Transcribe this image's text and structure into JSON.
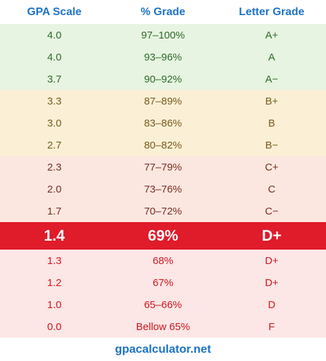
{
  "headers": {
    "gpa": "GPA Scale",
    "percent": "% Grade",
    "letter": "Letter Grade"
  },
  "rows": [
    {
      "gpa": "4.0",
      "percent": "97–100%",
      "letter": "A+",
      "group": "green"
    },
    {
      "gpa": "4.0",
      "percent": "93–96%",
      "letter": "A",
      "group": "green"
    },
    {
      "gpa": "3.7",
      "percent": "90–92%",
      "letter": "A−",
      "group": "green"
    },
    {
      "gpa": "3.3",
      "percent": "87–89%",
      "letter": "B+",
      "group": "yellow"
    },
    {
      "gpa": "3.0",
      "percent": "83–86%",
      "letter": "B",
      "group": "yellow"
    },
    {
      "gpa": "2.7",
      "percent": "80–82%",
      "letter": "B−",
      "group": "yellow"
    },
    {
      "gpa": "2.3",
      "percent": "77–79%",
      "letter": "C+",
      "group": "peach"
    },
    {
      "gpa": "2.0",
      "percent": "73–76%",
      "letter": "C",
      "group": "peach"
    },
    {
      "gpa": "1.7",
      "percent": "70–72%",
      "letter": "C−",
      "group": "peach"
    },
    {
      "gpa": "1.4",
      "percent": "69%",
      "letter": "D+",
      "group": "highlight"
    },
    {
      "gpa": "1.3",
      "percent": "68%",
      "letter": "D+",
      "group": "red"
    },
    {
      "gpa": "1.2",
      "percent": "67%",
      "letter": "D+",
      "group": "red"
    },
    {
      "gpa": "1.0",
      "percent": "65–66%",
      "letter": "D",
      "group": "red"
    },
    {
      "gpa": "0.0",
      "percent": "Bellow 65%",
      "letter": "F",
      "group": "red"
    }
  ],
  "footer": {
    "site": "gpacalculator.net"
  },
  "colors": {
    "header_text": "#1e73c8",
    "highlight_bg": "#e01b2a",
    "green_bg": "#e7f4e1",
    "yellow_bg": "#fbf0d6",
    "peach_bg": "#fce7e0",
    "red_bg": "#fde6e6"
  }
}
